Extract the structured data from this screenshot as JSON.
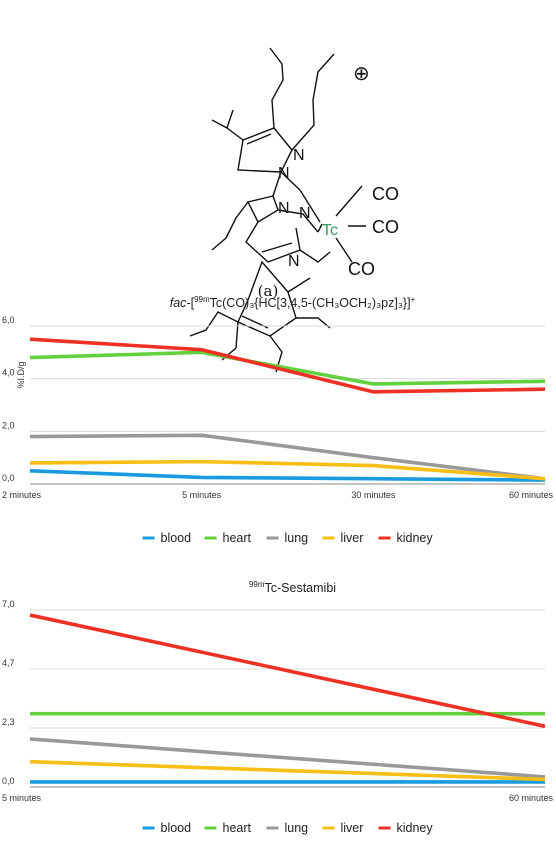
{
  "panel_label": "(a)",
  "molecule": {
    "atoms": {
      "n1": "N",
      "n2": "N",
      "n3": "N",
      "n4": "N",
      "n5": "N",
      "metal": "Tc"
    },
    "ligands": {
      "co1": "CO",
      "co2": "CO",
      "co3": "CO"
    },
    "charge": "⊕",
    "metal_color": "#3a9a5b"
  },
  "chart_data": [
    {
      "type": "line",
      "title_parts": {
        "pre": "fac",
        "mid": "-[",
        "sup1": "99m",
        "post": "Tc(CO)₃{HC[3,4,5-(CH₃OCH₂)₃pz]₃}]",
        "sup2": "+"
      },
      "ylabel": "%I.D/g",
      "categories": [
        "2 minutes",
        "5 minutes",
        "30 minutes",
        "60 minutes"
      ],
      "yticks": [
        "0,0",
        "2,0",
        "4,0",
        "6,0"
      ],
      "ylim": [
        0,
        6
      ],
      "grid": true,
      "legend": "bottom",
      "series": [
        {
          "name": "blood",
          "color": "#1a9be0",
          "values": [
            0.5,
            0.25,
            0.2,
            0.15
          ]
        },
        {
          "name": "heart",
          "color": "#63d13e",
          "values": [
            4.8,
            5.0,
            3.8,
            3.9
          ]
        },
        {
          "name": "lung",
          "color": "#999999",
          "values": [
            1.8,
            1.85,
            1.0,
            0.2
          ]
        },
        {
          "name": "liver",
          "color": "#f7be16",
          "values": [
            0.8,
            0.85,
            0.7,
            0.2
          ]
        },
        {
          "name": "kidney",
          "color": "#ee3124",
          "values": [
            5.5,
            5.1,
            3.5,
            3.6
          ]
        }
      ]
    },
    {
      "type": "line",
      "title_parts": {
        "sup1": "99m",
        "post": "Tc-Sestamibi"
      },
      "categories": [
        "5 minutes",
        "60 minutes"
      ],
      "yticks": [
        "0,0",
        "2,3",
        "4,7",
        "7,0"
      ],
      "ylim": [
        0,
        7
      ],
      "grid": true,
      "legend": "bottom",
      "series": [
        {
          "name": "blood",
          "color": "#1a9be0",
          "values": [
            0.2,
            0.2
          ]
        },
        {
          "name": "heart",
          "color": "#63d13e",
          "values": [
            2.9,
            2.9
          ]
        },
        {
          "name": "lung",
          "color": "#999999",
          "values": [
            1.9,
            0.4
          ]
        },
        {
          "name": "liver",
          "color": "#f7be16",
          "values": [
            1.0,
            0.3
          ]
        },
        {
          "name": "kidney",
          "color": "#ee3124",
          "values": [
            6.8,
            2.4
          ]
        }
      ]
    }
  ]
}
